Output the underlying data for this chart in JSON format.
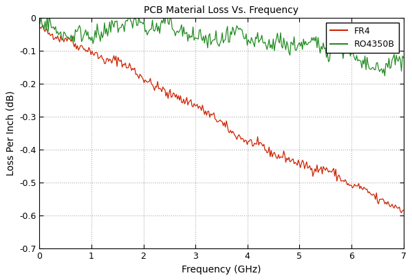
{
  "title": "PCB Material Loss Vs. Frequency",
  "xlabel": "Frequency (GHz)",
  "ylabel": "Loss Per Inch (dB)",
  "xlim": [
    0,
    7
  ],
  "ylim": [
    -0.7,
    0.0
  ],
  "yticks": [
    0,
    -0.1,
    -0.2,
    -0.3,
    -0.4,
    -0.5,
    -0.6,
    -0.7
  ],
  "xticks": [
    0,
    1,
    2,
    3,
    4,
    5,
    6,
    7
  ],
  "fr4_color": "#cc2200",
  "ro4350b_color": "#228b22",
  "background_color": "#ffffff",
  "grid_color": "#aaaaaa",
  "legend_labels": [
    "FR4",
    "RO4350B"
  ],
  "seed": 42,
  "n_points": 350
}
